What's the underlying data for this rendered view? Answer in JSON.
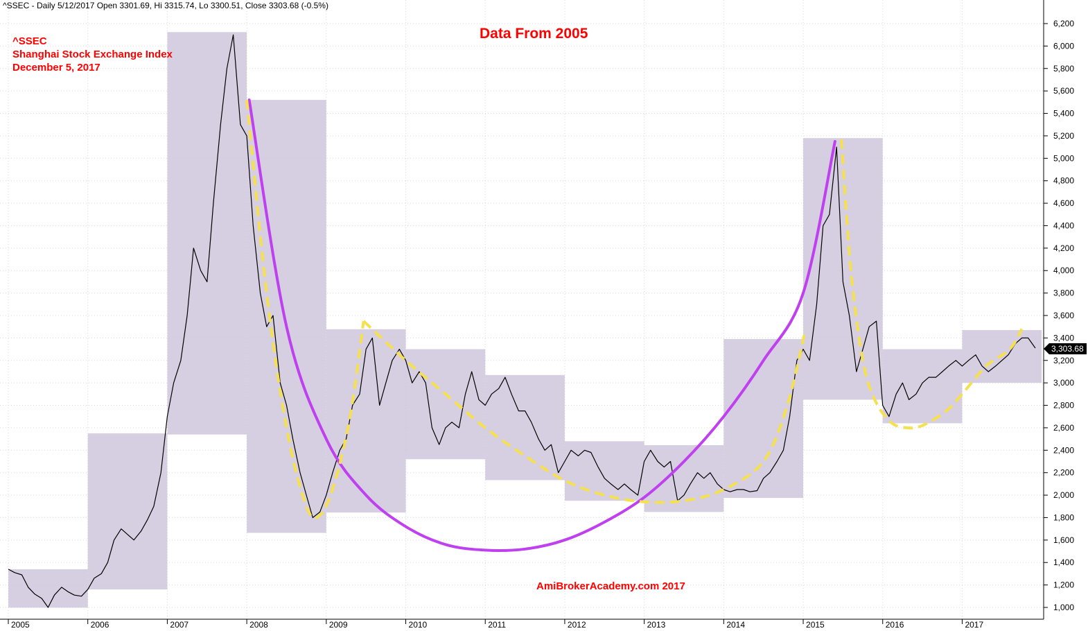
{
  "header": {
    "info_line": "^SSEC - Daily 5/12/2017 Open 3301.69, Hi 3315.74, Lo 3300.51, Close 3303.68 (-0.5%)"
  },
  "annotations": {
    "symbol": "^SSEC",
    "name": "Shanghai Stock Exchange Index",
    "date": "December 5, 2017",
    "data_from": "Data  From 2005",
    "watermark": "AmiBrokerAcademy.com  2017"
  },
  "colors": {
    "price_line": "#000000",
    "year_box_fill": "#cfc6dc",
    "big_cup_curve": "#bf40ef",
    "small_cycle_curve": "#f5e050",
    "annotation_text": "#ff0000",
    "grid": "#d9d9d9"
  },
  "chart_data": {
    "type": "line",
    "title": "",
    "xlabel": "",
    "ylabel": "",
    "x_tick_labels": [
      "2005",
      "2006",
      "2007",
      "2008",
      "2009",
      "2010",
      "2011",
      "2012",
      "2013",
      "2014",
      "2015",
      "2016",
      "2017"
    ],
    "y_tick_labels": [
      "1,000",
      "1,200",
      "1,400",
      "1,600",
      "1,800",
      "2,000",
      "2,200",
      "2,400",
      "2,600",
      "2,800",
      "3,000",
      "3,200",
      "3,400",
      "3,600",
      "3,800",
      "4,000",
      "4,200",
      "4,400",
      "4,600",
      "4,800",
      "5,000",
      "5,200",
      "5,400",
      "5,600",
      "5,800",
      "6,000",
      "6,200"
    ],
    "ylim": [
      900,
      6300
    ],
    "xlim": [
      2005.0,
      2017.99
    ],
    "grid": true,
    "last_value_label": "3,303.68",
    "last_value": 3303.68,
    "series": [
      {
        "points": [
          [
            2005.0,
            1340
          ],
          [
            2005.08,
            1310
          ],
          [
            2005.17,
            1290
          ],
          [
            2005.25,
            1180
          ],
          [
            2005.33,
            1120
          ],
          [
            2005.42,
            1080
          ],
          [
            2005.5,
            1000
          ],
          [
            2005.58,
            1110
          ],
          [
            2005.67,
            1180
          ],
          [
            2005.75,
            1140
          ],
          [
            2005.83,
            1110
          ],
          [
            2005.92,
            1100
          ],
          [
            2006.0,
            1160
          ],
          [
            2006.08,
            1260
          ],
          [
            2006.17,
            1300
          ],
          [
            2006.25,
            1400
          ],
          [
            2006.33,
            1600
          ],
          [
            2006.42,
            1700
          ],
          [
            2006.5,
            1650
          ],
          [
            2006.58,
            1600
          ],
          [
            2006.67,
            1680
          ],
          [
            2006.75,
            1780
          ],
          [
            2006.83,
            1900
          ],
          [
            2006.92,
            2200
          ],
          [
            2007.0,
            2700
          ],
          [
            2007.08,
            3000
          ],
          [
            2007.17,
            3200
          ],
          [
            2007.25,
            3600
          ],
          [
            2007.33,
            4200
          ],
          [
            2007.42,
            4000
          ],
          [
            2007.5,
            3900
          ],
          [
            2007.58,
            4600
          ],
          [
            2007.67,
            5300
          ],
          [
            2007.75,
            5800
          ],
          [
            2007.83,
            6100
          ],
          [
            2007.92,
            5300
          ],
          [
            2008.0,
            5200
          ],
          [
            2008.08,
            4400
          ],
          [
            2008.17,
            3800
          ],
          [
            2008.25,
            3500
          ],
          [
            2008.33,
            3600
          ],
          [
            2008.42,
            3000
          ],
          [
            2008.5,
            2800
          ],
          [
            2008.58,
            2500
          ],
          [
            2008.67,
            2200
          ],
          [
            2008.75,
            2000
          ],
          [
            2008.83,
            1800
          ],
          [
            2008.92,
            1850
          ],
          [
            2009.0,
            2000
          ],
          [
            2009.08,
            2200
          ],
          [
            2009.17,
            2400
          ],
          [
            2009.25,
            2500
          ],
          [
            2009.33,
            2800
          ],
          [
            2009.42,
            2900
          ],
          [
            2009.5,
            3300
          ],
          [
            2009.58,
            3400
          ],
          [
            2009.67,
            2800
          ],
          [
            2009.75,
            3000
          ],
          [
            2009.83,
            3200
          ],
          [
            2009.92,
            3300
          ],
          [
            2010.0,
            3200
          ],
          [
            2010.08,
            3000
          ],
          [
            2010.17,
            3100
          ],
          [
            2010.25,
            3000
          ],
          [
            2010.33,
            2600
          ],
          [
            2010.42,
            2450
          ],
          [
            2010.5,
            2600
          ],
          [
            2010.58,
            2650
          ],
          [
            2010.67,
            2600
          ],
          [
            2010.75,
            2900
          ],
          [
            2010.83,
            3100
          ],
          [
            2010.92,
            2850
          ],
          [
            2011.0,
            2800
          ],
          [
            2011.08,
            2900
          ],
          [
            2011.17,
            2950
          ],
          [
            2011.25,
            3050
          ],
          [
            2011.33,
            2900
          ],
          [
            2011.42,
            2750
          ],
          [
            2011.5,
            2750
          ],
          [
            2011.58,
            2650
          ],
          [
            2011.67,
            2500
          ],
          [
            2011.75,
            2400
          ],
          [
            2011.83,
            2450
          ],
          [
            2011.92,
            2200
          ],
          [
            2012.0,
            2300
          ],
          [
            2012.08,
            2400
          ],
          [
            2012.17,
            2350
          ],
          [
            2012.25,
            2400
          ],
          [
            2012.33,
            2380
          ],
          [
            2012.42,
            2250
          ],
          [
            2012.5,
            2150
          ],
          [
            2012.58,
            2100
          ],
          [
            2012.67,
            2050
          ],
          [
            2012.75,
            2100
          ],
          [
            2012.83,
            2050
          ],
          [
            2012.92,
            2000
          ],
          [
            2013.0,
            2300
          ],
          [
            2013.08,
            2400
          ],
          [
            2013.17,
            2300
          ],
          [
            2013.25,
            2250
          ],
          [
            2013.33,
            2300
          ],
          [
            2013.42,
            1950
          ],
          [
            2013.5,
            2000
          ],
          [
            2013.58,
            2100
          ],
          [
            2013.67,
            2200
          ],
          [
            2013.75,
            2150
          ],
          [
            2013.83,
            2200
          ],
          [
            2013.92,
            2100
          ],
          [
            2014.0,
            2050
          ],
          [
            2014.08,
            2030
          ],
          [
            2014.17,
            2050
          ],
          [
            2014.25,
            2050
          ],
          [
            2014.33,
            2030
          ],
          [
            2014.42,
            2040
          ],
          [
            2014.5,
            2150
          ],
          [
            2014.58,
            2200
          ],
          [
            2014.67,
            2300
          ],
          [
            2014.75,
            2400
          ],
          [
            2014.83,
            2700
          ],
          [
            2014.92,
            3200
          ],
          [
            2015.0,
            3300
          ],
          [
            2015.08,
            3200
          ],
          [
            2015.17,
            3700
          ],
          [
            2015.25,
            4400
          ],
          [
            2015.33,
            4500
          ],
          [
            2015.42,
            5100
          ],
          [
            2015.5,
            3900
          ],
          [
            2015.58,
            3600
          ],
          [
            2015.67,
            3100
          ],
          [
            2015.75,
            3300
          ],
          [
            2015.83,
            3500
          ],
          [
            2015.92,
            3550
          ],
          [
            2016.0,
            2800
          ],
          [
            2016.08,
            2700
          ],
          [
            2016.17,
            2900
          ],
          [
            2016.25,
            3000
          ],
          [
            2016.33,
            2850
          ],
          [
            2016.42,
            2900
          ],
          [
            2016.5,
            3000
          ],
          [
            2016.58,
            3050
          ],
          [
            2016.67,
            3050
          ],
          [
            2016.75,
            3100
          ],
          [
            2016.83,
            3150
          ],
          [
            2016.92,
            3200
          ],
          [
            2017.0,
            3150
          ],
          [
            2017.08,
            3200
          ],
          [
            2017.17,
            3250
          ],
          [
            2017.25,
            3150
          ],
          [
            2017.33,
            3100
          ],
          [
            2017.42,
            3150
          ],
          [
            2017.5,
            3200
          ],
          [
            2017.58,
            3250
          ],
          [
            2017.67,
            3350
          ],
          [
            2017.75,
            3400
          ],
          [
            2017.83,
            3400
          ],
          [
            2017.92,
            3310
          ]
        ]
      }
    ],
    "year_boxes": [
      {
        "year": 2005,
        "low": 998,
        "high": 1340
      },
      {
        "year": 2006,
        "low": 1160,
        "high": 2550
      },
      {
        "year": 2007,
        "low": 2540,
        "high": 6124
      },
      {
        "year": 2008,
        "low": 1664,
        "high": 5520
      },
      {
        "year": 2009,
        "low": 1845,
        "high": 3478
      },
      {
        "year": 2010,
        "low": 2320,
        "high": 3300
      },
      {
        "year": 2011,
        "low": 2134,
        "high": 3070
      },
      {
        "year": 2012,
        "low": 1950,
        "high": 2480
      },
      {
        "year": 2013,
        "low": 1850,
        "high": 2445
      },
      {
        "year": 2014,
        "low": 1975,
        "high": 3390
      },
      {
        "year": 2015,
        "low": 2850,
        "high": 5180
      },
      {
        "year": 2016,
        "low": 2640,
        "high": 3300
      },
      {
        "year": 2017,
        "low": 3000,
        "high": 3470
      }
    ],
    "big_cup_curve": [
      [
        2008.03,
        5520
      ],
      [
        2008.5,
        3500
      ],
      [
        2009.0,
        2500
      ],
      [
        2009.5,
        2000
      ],
      [
        2010.0,
        1720
      ],
      [
        2010.5,
        1560
      ],
      [
        2011.0,
        1510
      ],
      [
        2011.5,
        1520
      ],
      [
        2012.0,
        1600
      ],
      [
        2012.5,
        1760
      ],
      [
        2013.0,
        1980
      ],
      [
        2013.5,
        2300
      ],
      [
        2014.0,
        2700
      ],
      [
        2014.5,
        3200
      ],
      [
        2015.0,
        3800
      ],
      [
        2015.4,
        5150
      ]
    ],
    "small_cycle_curves": [
      [
        [
          2008.0,
          5520
        ],
        [
          2008.25,
          3800
        ],
        [
          2008.5,
          2600
        ],
        [
          2008.75,
          1900
        ],
        [
          2008.92,
          1820
        ],
        [
          2009.1,
          2100
        ],
        [
          2009.3,
          2700
        ],
        [
          2009.47,
          3550
        ]
      ],
      [
        [
          2009.47,
          3550
        ],
        [
          2010.0,
          3200
        ],
        [
          2010.5,
          2900
        ],
        [
          2011.0,
          2600
        ],
        [
          2011.5,
          2350
        ],
        [
          2012.0,
          2130
        ],
        [
          2012.5,
          2000
        ],
        [
          2013.0,
          1940
        ],
        [
          2013.5,
          1950
        ],
        [
          2014.0,
          2050
        ],
        [
          2014.5,
          2300
        ],
        [
          2014.8,
          2800
        ],
        [
          2015.03,
          3480
        ]
      ],
      [
        [
          2015.48,
          5170
        ],
        [
          2015.6,
          4000
        ],
        [
          2015.75,
          3200
        ],
        [
          2015.9,
          2850
        ],
        [
          2016.1,
          2650
        ],
        [
          2016.3,
          2600
        ],
        [
          2016.5,
          2620
        ],
        [
          2016.8,
          2750
        ],
        [
          2017.0,
          2900
        ],
        [
          2017.3,
          3150
        ],
        [
          2017.6,
          3300
        ],
        [
          2017.75,
          3480
        ]
      ]
    ]
  }
}
